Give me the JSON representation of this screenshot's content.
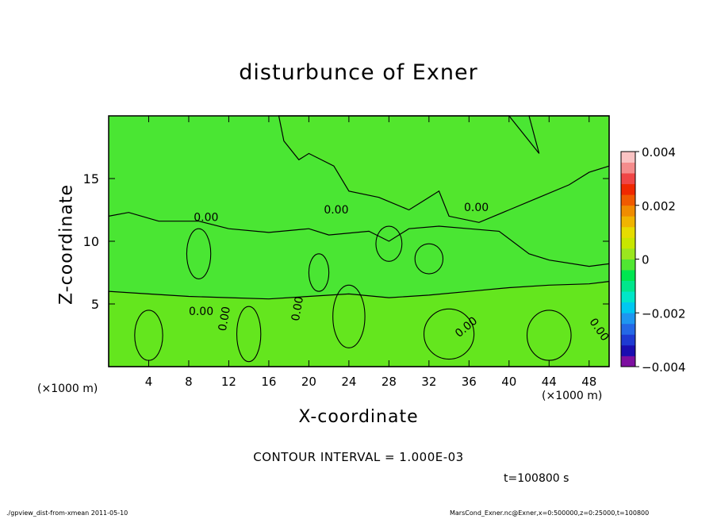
{
  "chart_data": {
    "type": "heatmap",
    "title": "disturbunce of Exner",
    "xlabel": "X-coordinate",
    "ylabel": "Z-coordinate",
    "x_unit": "(×1000 m)",
    "y_unit": "(×1000 m)",
    "xlim": [
      0,
      50
    ],
    "ylim": [
      0,
      20
    ],
    "x_ticks": [
      4,
      8,
      12,
      16,
      20,
      24,
      28,
      32,
      36,
      40,
      44,
      48
    ],
    "y_ticks": [
      5,
      10,
      15
    ],
    "contour_labels": [
      "0.00",
      "0.00",
      "0.00",
      "0.00",
      "0.00",
      "0.00",
      "0.00",
      "0.00"
    ],
    "colorbar": {
      "min": -0.004,
      "max": 0.004,
      "tick_values": [
        0.004,
        0.002,
        0,
        -0.002,
        -0.004
      ],
      "tick_labels": [
        "0.004",
        "0.002",
        "0",
        "−0.002",
        "−0.004"
      ],
      "colors": [
        "#7d0fa0",
        "#1a0db0",
        "#1e3ad2",
        "#2468e6",
        "#1e96f0",
        "#00c8f0",
        "#00e6c8",
        "#00e68c",
        "#00e650",
        "#50e632",
        "#9be61e",
        "#c8e600",
        "#e6dc00",
        "#f0b400",
        "#f08c00",
        "#f05a00",
        "#f02800",
        "#f04646",
        "#f58c8c",
        "#fac3c3"
      ]
    },
    "fill_colors": {
      "background": "#4ae633",
      "lower_layer": "#64e61e",
      "upper_region": "#52e62d"
    }
  },
  "contour_interval": "CONTOUR INTERVAL = 1.000E-03",
  "time_label": "t=100800 s",
  "footer": {
    "left": "./gpview_dist-from-xmean   2011-05-10",
    "right": "MarsCond_Exner.nc@Exner,x=0:500000,z=0:25000,t=100800"
  }
}
